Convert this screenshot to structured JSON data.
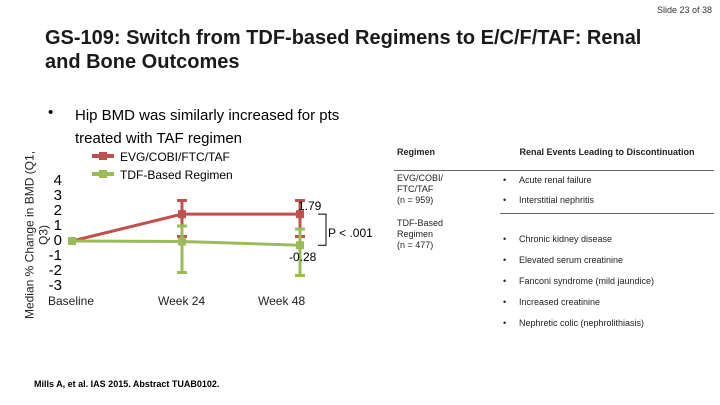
{
  "slide": {
    "number_label": "Slide 23 of 38"
  },
  "title": "GS-109: Switch from TDF-based Regimens to E/C/F/TAF: Renal and Bone Outcomes",
  "bullet": {
    "marker": "•",
    "text": "Hip BMD was similarly increased for pts treated with TAF regimen"
  },
  "colors": {
    "taf": "#c0504d",
    "tdf": "#9bbb59",
    "axis": "#888888"
  },
  "chart_data": {
    "type": "line",
    "ylabel": "Median % Change in BMD (Q1, Q3)",
    "categories": [
      "Baseline",
      "Week 24",
      "Week 48"
    ],
    "ylim": [
      -3,
      4
    ],
    "yticks": [
      "4",
      "3",
      "2",
      "1",
      "0",
      "-1",
      "-2",
      "-3"
    ],
    "series": [
      {
        "name": "EVG/COBI/FTC/TAF",
        "color": "#c0504d",
        "values": [
          0,
          1.79,
          1.79
        ],
        "err_low": [
          0,
          0.3,
          0.3
        ],
        "err_high": [
          0,
          2.7,
          2.7
        ]
      },
      {
        "name": "TDF-Based Regimen",
        "color": "#9bbb59",
        "values": [
          0,
          -0.03,
          -0.28
        ],
        "err_low": [
          0,
          -2.1,
          -2.3
        ],
        "err_high": [
          0,
          1.0,
          0.8
        ]
      }
    ],
    "annotations": {
      "taf_value": "1.79",
      "tdf_value": "-0.28",
      "p_value": "P < .001"
    }
  },
  "table": {
    "headers": {
      "regimen": "Regimen",
      "events": "Renal Events Leading to Discontinuation"
    },
    "bullet_marker": "•",
    "groups": [
      {
        "regimen_lines": [
          "EVG/COBI/",
          "FTC/TAF",
          "(n = 959)"
        ],
        "events": [
          "Acute renal failure",
          "Interstitial nephritis"
        ]
      },
      {
        "regimen_lines": [
          "TDF-Based",
          "Regimen",
          "(n = 477)"
        ],
        "events": [
          "Chronic kidney disease",
          "Elevated serum creatinine",
          "Fanconi syndrome (mild jaundice)",
          "Increased creatinine",
          "Nephretic colic (nephrolithiasis)"
        ]
      }
    ]
  },
  "citation": "Mills A, et al. IAS 2015. Abstract TUAB0102."
}
